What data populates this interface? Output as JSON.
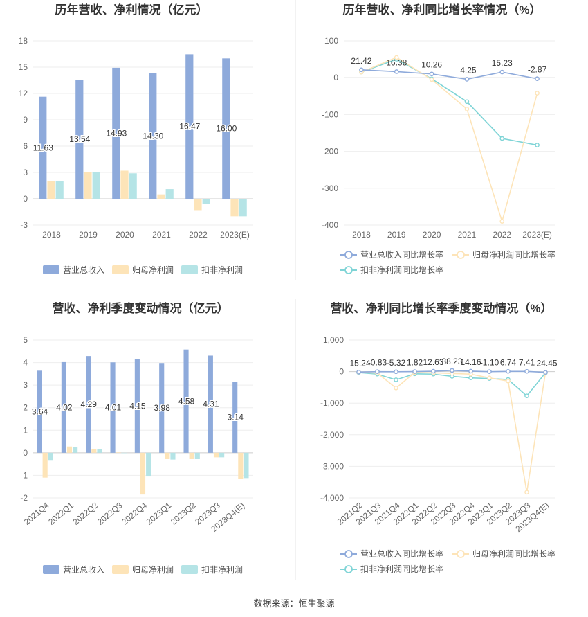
{
  "footer": {
    "source": "数据来源：恒生聚源"
  },
  "colors": {
    "revenue": "#8eaadb",
    "netprofit": "#fde4b8",
    "deducted": "#b5e4e6",
    "rev_line": "#8eaadb",
    "np_line": "#fde4b8",
    "ded_line": "#7fd4d6"
  },
  "chart_data": [
    {
      "type": "bar",
      "title": "历年营收、净利情况（亿元）",
      "categories": [
        "2018",
        "2019",
        "2020",
        "2021",
        "2022",
        "2023(E)"
      ],
      "yticks": [
        "18",
        "15",
        "12",
        "9",
        "6",
        "3",
        "0",
        "-3"
      ],
      "ylim": [
        -3,
        18
      ],
      "series": [
        {
          "name": "营业总收入",
          "values": [
            11.63,
            13.54,
            14.93,
            14.3,
            16.47,
            16.0
          ],
          "labels": [
            "11.63",
            "13.54",
            "14.93",
            "14.30",
            "16.47",
            "16.00"
          ]
        },
        {
          "name": "归母净利润",
          "values": [
            2.0,
            3.0,
            3.2,
            0.5,
            -1.3,
            -2.0
          ]
        },
        {
          "name": "扣非净利润",
          "values": [
            2.0,
            3.0,
            2.9,
            1.1,
            -0.6,
            -2.0
          ]
        }
      ],
      "legend": "bottom"
    },
    {
      "type": "line",
      "title": "历年营收、净利同比增长率情况（%）",
      "categories": [
        "2018",
        "2019",
        "2020",
        "2021",
        "2022",
        "2023(E)"
      ],
      "yticks": [
        "100",
        "0",
        "-100",
        "-200",
        "-300",
        "-400"
      ],
      "ylim": [
        -400,
        100
      ],
      "series": [
        {
          "name": "营业总收入同比增长率",
          "values": [
            21.42,
            16.38,
            10.26,
            -4.25,
            15.23,
            -2.87
          ],
          "labels": [
            "21.42",
            "16.38",
            "10.26",
            "-4.25",
            "15.23",
            "-2.87"
          ]
        },
        {
          "name": "归母净利润同比增长率",
          "values": [
            15,
            55,
            -5,
            -85,
            -390,
            -42
          ]
        },
        {
          "name": "扣非净利润同比增长率",
          "values": [
            15,
            50,
            -3,
            -65,
            -165,
            -183
          ]
        }
      ],
      "legend": "bottom"
    },
    {
      "type": "bar",
      "title": "营收、净利季度变动情况（亿元）",
      "categories": [
        "2021Q4",
        "2022Q1",
        "2022Q2",
        "2022Q3",
        "2022Q4",
        "2023Q1",
        "2023Q2",
        "2023Q3",
        "2023Q4(E)"
      ],
      "yticks": [
        "5",
        "4",
        "3",
        "2",
        "1",
        "0",
        "-1",
        "-2"
      ],
      "ylim": [
        -2,
        5
      ],
      "series": [
        {
          "name": "营业总收入",
          "values": [
            3.64,
            4.02,
            4.29,
            4.01,
            4.15,
            3.98,
            4.58,
            4.31,
            3.14
          ],
          "labels": [
            "3.64",
            "4.02",
            "4.29",
            "4.01",
            "4.15",
            "3.98",
            "4.58",
            "4.31",
            "3.14"
          ]
        },
        {
          "name": "归母净利润",
          "values": [
            -1.1,
            0.28,
            0.18,
            0.02,
            -1.85,
            -0.28,
            -0.28,
            -0.2,
            -1.15
          ]
        },
        {
          "name": "扣非净利润",
          "values": [
            -0.35,
            0.26,
            0.16,
            0.0,
            -1.05,
            -0.3,
            -0.28,
            -0.2,
            -1.12
          ]
        }
      ],
      "legend": "bottom"
    },
    {
      "type": "line",
      "title": "营收、净利同比增长率季度变动情况（%）",
      "categories": [
        "2021Q2",
        "2021Q3",
        "2021Q4",
        "2022Q1",
        "2022Q2",
        "2022Q3",
        "2022Q4",
        "2023Q1",
        "2023Q2",
        "2023Q3",
        "2023Q4(E)"
      ],
      "yticks": [
        "1,000",
        "0",
        "-1,000",
        "-2,000",
        "-3,000",
        "-4,000"
      ],
      "ylim": [
        -4000,
        1000
      ],
      "series": [
        {
          "name": "营业总收入同比增长率",
          "values": [
            -15.24,
            -0.83,
            -5.32,
            1.82,
            12.63,
            38.23,
            14.16,
            -1.1,
            6.74,
            7.41,
            -24.45
          ],
          "labels": [
            "-15.24",
            "-0.83",
            "-5.32",
            "1.82",
            "12.63",
            "38.23",
            "14.16",
            "-1.10",
            "6.74",
            "7.41",
            "-24.45"
          ]
        },
        {
          "name": "归母净利润同比增长率",
          "values": [
            -20,
            -50,
            -520,
            -30,
            -40,
            -60,
            -80,
            -200,
            -300,
            -3820,
            -30
          ]
        },
        {
          "name": "扣非净利润同比增长率",
          "values": [
            -30,
            -80,
            -260,
            -70,
            -80,
            -150,
            -200,
            -220,
            -250,
            -770,
            -40
          ]
        }
      ],
      "legend": "bottom"
    }
  ]
}
